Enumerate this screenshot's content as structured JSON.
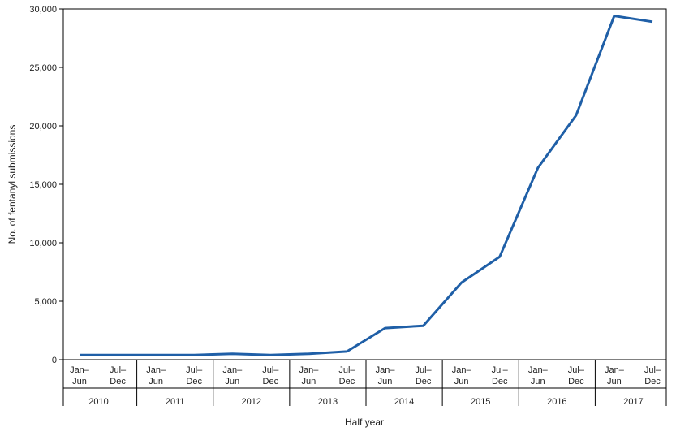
{
  "chart_data": {
    "type": "line",
    "x": [
      "2010 Jan–Jun",
      "2010 Jul–Dec",
      "2011 Jan–Jun",
      "2011 Jul–Dec",
      "2012 Jan–Jun",
      "2012 Jul–Dec",
      "2013 Jan–Jun",
      "2013 Jul–Dec",
      "2014 Jan–Jun",
      "2014 Jul–Dec",
      "2015 Jan–Jun",
      "2015 Jul–Dec",
      "2016 Jan–Jun",
      "2016 Jul–Dec",
      "2017 Jan–Jun",
      "2017 Jul–Dec"
    ],
    "half_labels": [
      [
        "Jan–",
        "Jun"
      ],
      [
        "Jul–",
        "Dec"
      ]
    ],
    "years": [
      "2010",
      "2011",
      "2012",
      "2013",
      "2014",
      "2015",
      "2016",
      "2017"
    ],
    "series": [
      {
        "values": [
          400,
          400,
          400,
          400,
          500,
          400,
          500,
          700,
          2700,
          2900,
          6600,
          8800,
          16400,
          20900,
          29400,
          28900
        ],
        "color": "#1f5fa7"
      }
    ],
    "yticks": [
      "0",
      "5,000",
      "10,000",
      "15,000",
      "20,000",
      "25,000",
      "30,000"
    ],
    "ylim": [
      0,
      30000
    ],
    "xlabel": "Half year",
    "ylabel": "No. of fentanyl submissions",
    "grid": false
  }
}
